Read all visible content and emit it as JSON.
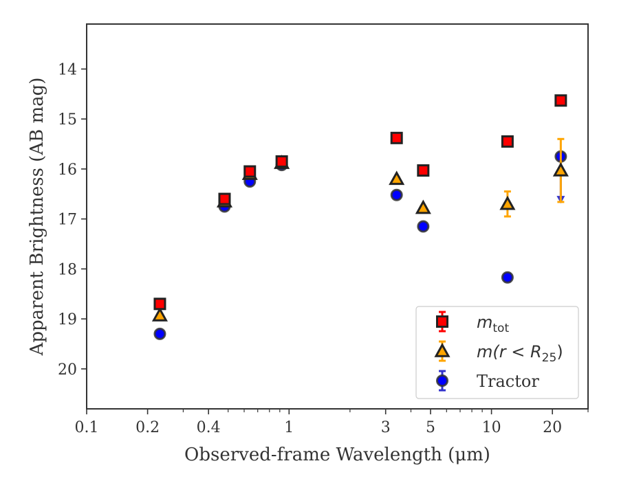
{
  "chart_data": {
    "type": "scatter",
    "xlabel": "Observed-frame Wavelength (μm)",
    "ylabel": "Apparent Brightness (AB mag)",
    "x_scale": "log",
    "xlim": [
      0.1,
      30
    ],
    "ylim": [
      20.8,
      13.1
    ],
    "y_inverted": true,
    "grid": false,
    "legend_position": "bottom-right",
    "x_major_ticks": [
      {
        "value": 0.1,
        "label": "0.1"
      },
      {
        "value": 0.2,
        "label": "0.2"
      },
      {
        "value": 0.4,
        "label": "0.4"
      },
      {
        "value": 1,
        "label": "1"
      },
      {
        "value": 3,
        "label": "3"
      },
      {
        "value": 5,
        "label": "5"
      },
      {
        "value": 10,
        "label": "10"
      },
      {
        "value": 20,
        "label": "20"
      }
    ],
    "x_minor_ticks": [
      0.3,
      0.5,
      0.6,
      0.7,
      0.8,
      0.9,
      2,
      4,
      6,
      7,
      8,
      9,
      30
    ],
    "y_ticks": [
      {
        "value": 14,
        "label": "14"
      },
      {
        "value": 15,
        "label": "15"
      },
      {
        "value": 16,
        "label": "16"
      },
      {
        "value": 17,
        "label": "17"
      },
      {
        "value": 18,
        "label": "18"
      },
      {
        "value": 19,
        "label": "19"
      },
      {
        "value": 20,
        "label": "20"
      }
    ],
    "series": [
      {
        "name_main": "m",
        "name_sub": "tot",
        "marker": "square",
        "color": "#ff0000",
        "edge": "#222222",
        "error_color": "#ff0000",
        "points": [
          {
            "x": 0.23,
            "y": 18.7,
            "err": 0.03
          },
          {
            "x": 0.48,
            "y": 16.6,
            "err": 0.03
          },
          {
            "x": 0.64,
            "y": 16.05,
            "err": 0.06
          },
          {
            "x": 0.92,
            "y": 15.85,
            "err": 0.04
          },
          {
            "x": 3.4,
            "y": 15.38,
            "err": 0.02
          },
          {
            "x": 4.6,
            "y": 16.03,
            "err": 0.02
          },
          {
            "x": 12.0,
            "y": 15.45,
            "err": 0.02
          },
          {
            "x": 22.0,
            "y": 14.63,
            "err": 0.02
          }
        ]
      },
      {
        "name_main": "m",
        "name_expr": "(r < R",
        "name_sub": "25",
        "name_tail": ")",
        "marker": "triangle",
        "color": "#ffa500",
        "edge": "#222222",
        "error_color": "#ffa500",
        "points": [
          {
            "x": 0.23,
            "y": 18.93,
            "err": 0.03
          },
          {
            "x": 0.48,
            "y": 16.65,
            "err": 0.03
          },
          {
            "x": 0.64,
            "y": 16.1,
            "err": 0.03
          },
          {
            "x": 0.92,
            "y": 15.88,
            "err": 0.03
          },
          {
            "x": 3.4,
            "y": 16.2,
            "err": 0.03
          },
          {
            "x": 4.6,
            "y": 16.78,
            "err": 0.03
          },
          {
            "x": 12.0,
            "y": 16.7,
            "err": 0.25
          },
          {
            "x": 22.0,
            "y": 16.03,
            "err": 0.63
          }
        ]
      },
      {
        "name": "Tractor",
        "marker": "circle",
        "color": "#0000ff",
        "edge": "#333333",
        "error_color": "#3333cc",
        "points": [
          {
            "x": 0.23,
            "y": 19.3,
            "err": 0.05
          },
          {
            "x": 0.48,
            "y": 16.75,
            "err": 0.03
          },
          {
            "x": 0.64,
            "y": 16.25,
            "err": 0.06
          },
          {
            "x": 0.92,
            "y": 15.92,
            "err": 0.04
          },
          {
            "x": 3.4,
            "y": 16.52,
            "err": 0.06
          },
          {
            "x": 4.6,
            "y": 17.15,
            "err": 0.06
          },
          {
            "x": 12.0,
            "y": 18.17,
            "err": 0.07
          },
          {
            "x": 22.0,
            "y": 15.75,
            "err": 0.05,
            "upper_limit_to": 16.65
          }
        ]
      }
    ]
  }
}
